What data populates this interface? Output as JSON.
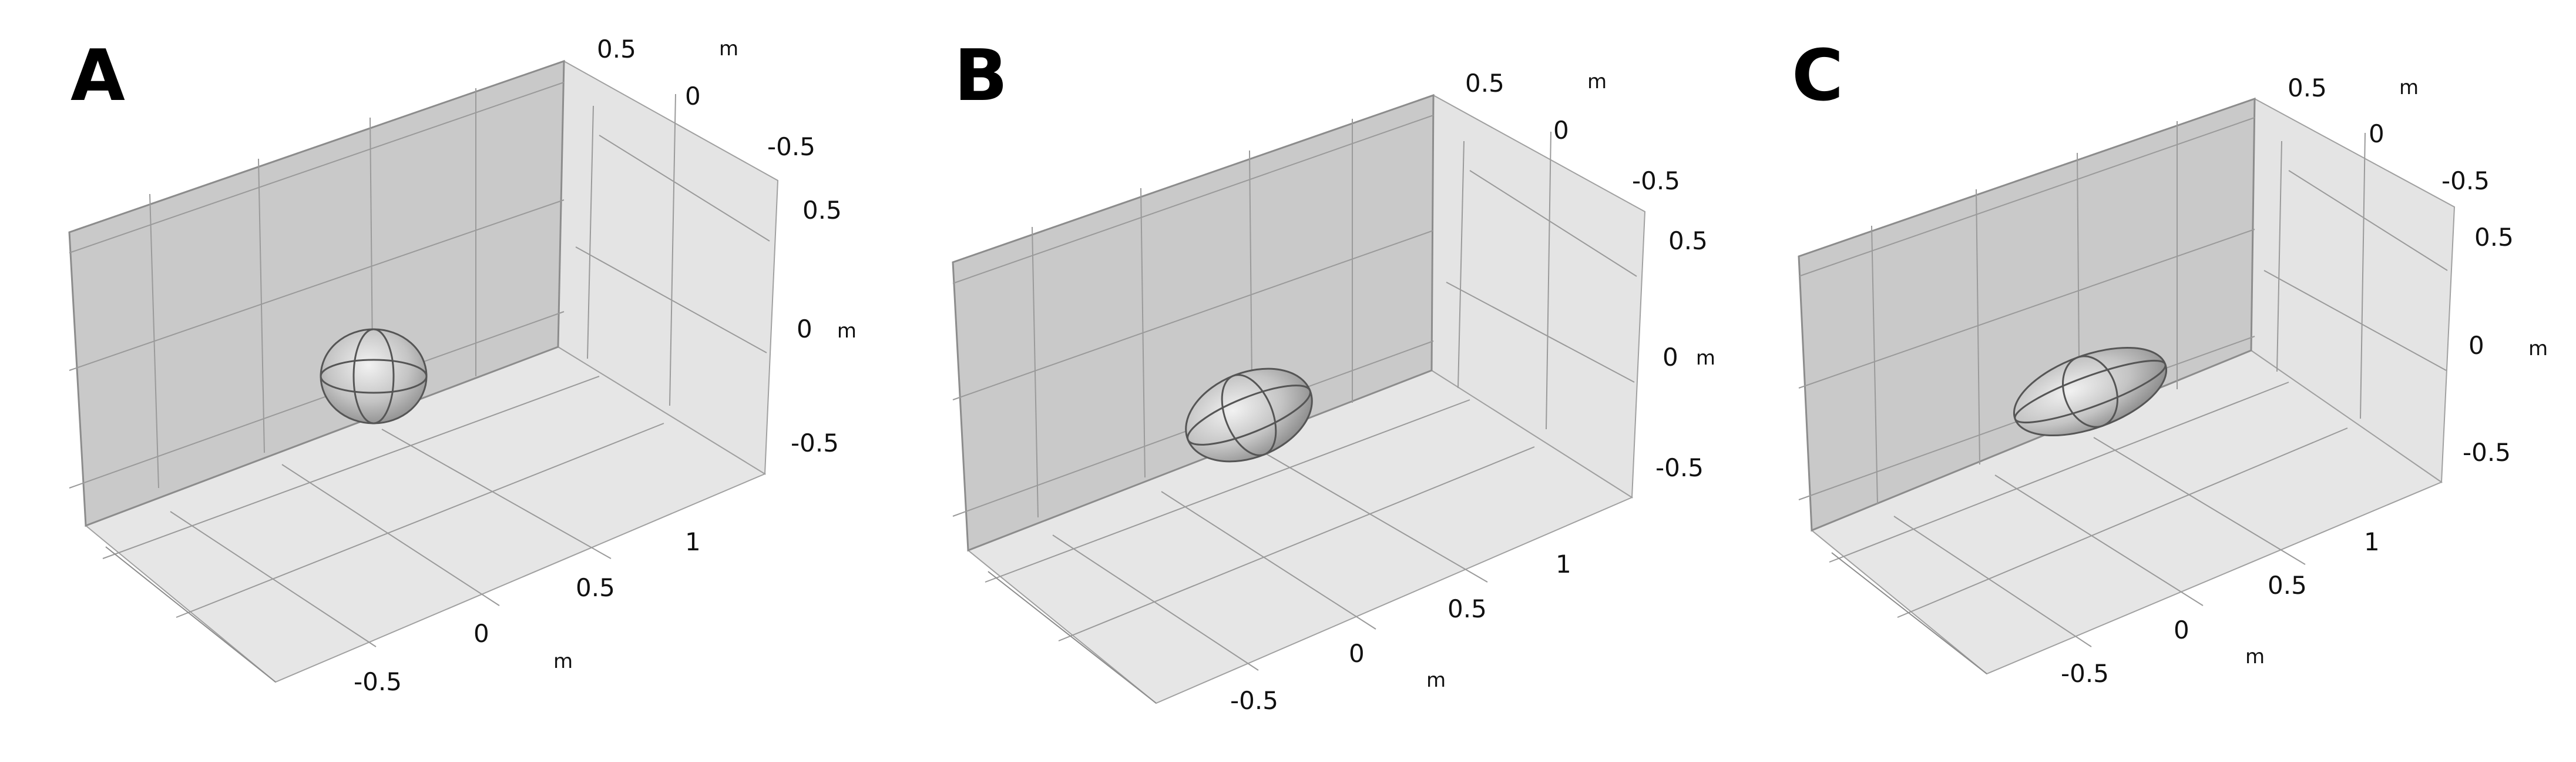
{
  "panels": [
    {
      "letter": "A",
      "y_axis_ticks": [
        "0.5",
        "0",
        "-0.5"
      ],
      "z_axis_ticks": [
        "0.5",
        "0",
        "-0.5"
      ],
      "x_axis_ticks": [
        "1",
        "0.5",
        "0",
        "-0.5"
      ],
      "unit": "m"
    },
    {
      "letter": "B",
      "y_axis_ticks": [
        "0.5",
        "0",
        "-0.5"
      ],
      "z_axis_ticks": [
        "0.5",
        "0",
        "-0.5"
      ],
      "x_axis_ticks": [
        "1",
        "0.5",
        "0",
        "-0.5"
      ],
      "unit": "m"
    },
    {
      "letter": "C",
      "y_axis_ticks": [
        "0.5",
        "0",
        "-0.5"
      ],
      "z_axis_ticks": [
        "0.5",
        "0",
        "-0.5"
      ],
      "x_axis_ticks": [
        "1",
        "0.5",
        "0",
        "-0.5"
      ],
      "unit": "m"
    }
  ],
  "colors": {
    "back_wall": "#c9c9c9",
    "side_wall": "#e4e4e4",
    "floor": "#e6e6e6",
    "edge": "#8c8c8c",
    "grid": "#9a9a9a",
    "ellipsoid": "#b8b8b8"
  }
}
